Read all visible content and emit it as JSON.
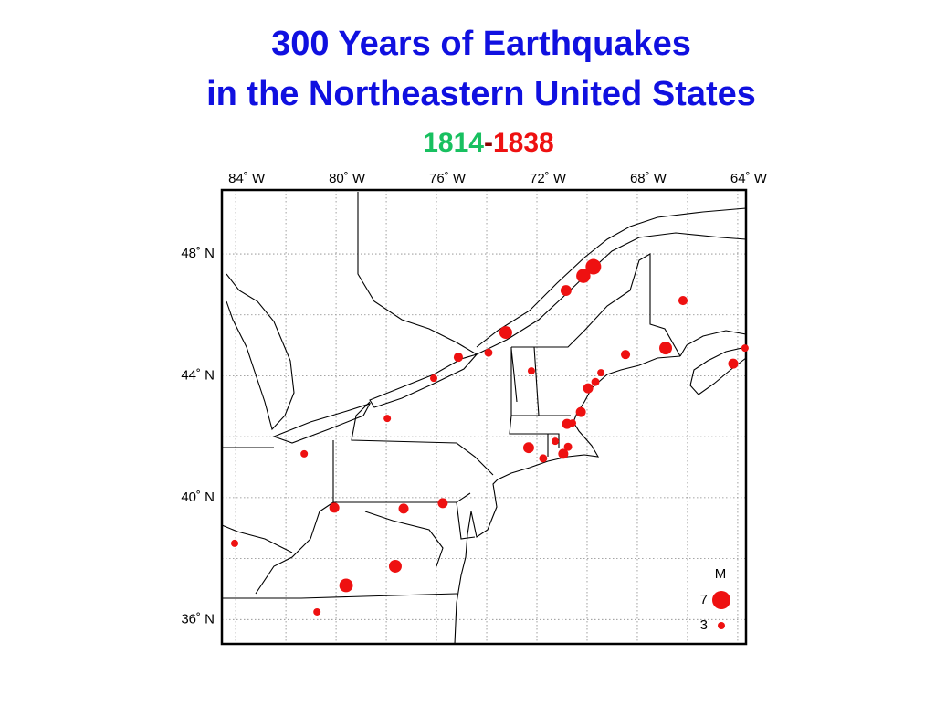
{
  "title_lines": [
    "300 Years of Earthquakes",
    "in the Northeastern United States"
  ],
  "period": {
    "start": "1814",
    "separator": "-",
    "end": "1838"
  },
  "map": {
    "xlim": [
      -84.55,
      -63.67
    ],
    "ylim": [
      35.2,
      50.1
    ],
    "xticks": [
      {
        "value": -84,
        "label": "84˚ W"
      },
      {
        "value": -80,
        "label": "80˚ W"
      },
      {
        "value": -76,
        "label": "76˚ W"
      },
      {
        "value": -72,
        "label": "72˚ W"
      },
      {
        "value": -68,
        "label": "68˚ W"
      },
      {
        "value": -64,
        "label": "64˚ W"
      }
    ],
    "yticks": [
      {
        "value": 48,
        "label": "48˚ N"
      },
      {
        "value": 44,
        "label": "44˚ N"
      },
      {
        "value": 40,
        "label": "40˚ N"
      },
      {
        "value": 36,
        "label": "36˚ N"
      }
    ],
    "grid_lines": {
      "lon": [
        -84,
        -82,
        -80,
        -78,
        -76,
        -74,
        -72,
        -70,
        -68,
        -66,
        -64
      ],
      "lat": [
        36,
        38,
        40,
        42,
        44,
        46,
        48
      ]
    },
    "color": "#ee1111",
    "earthquakes": {
      "lon": [
        -69.75,
        -70.15,
        -70.84,
        -66.18,
        -73.24,
        -75.13,
        -73.93,
        -76.11,
        -72.22,
        -68.47,
        -66.87,
        -63.71,
        -64.18,
        -69.45,
        -69.67,
        -69.96,
        -70.25,
        -70.8,
        -70.58,
        -71.27,
        -72.33,
        -70.76,
        -70.95,
        -71.75,
        -77.96,
        -81.27,
        -80.07,
        -77.31,
        -75.75,
        -84.04,
        -77.64,
        -79.6,
        -80.76
      ],
      "lat": [
        47.58,
        47.28,
        46.8,
        46.47,
        45.42,
        44.61,
        44.76,
        43.92,
        44.16,
        44.7,
        44.91,
        44.91,
        44.4,
        44.1,
        43.8,
        43.59,
        42.81,
        42.42,
        42.45,
        41.85,
        41.64,
        41.67,
        41.44,
        41.29,
        42.6,
        41.44,
        39.67,
        39.64,
        39.82,
        38.5,
        37.75,
        37.12,
        36.25
      ],
      "magnitude": [
        6,
        5.5,
        4.3,
        3.7,
        5,
        3.7,
        3.3,
        3,
        3,
        3.7,
        5,
        3,
        4,
        3,
        3.3,
        4,
        4,
        4,
        3,
        3,
        4.3,
        3.3,
        4,
        3.3,
        3,
        3,
        4,
        4,
        4,
        3,
        5,
        5.3,
        3
      ]
    },
    "legend": {
      "title": "M",
      "magnitudes": [
        7,
        3
      ]
    }
  }
}
